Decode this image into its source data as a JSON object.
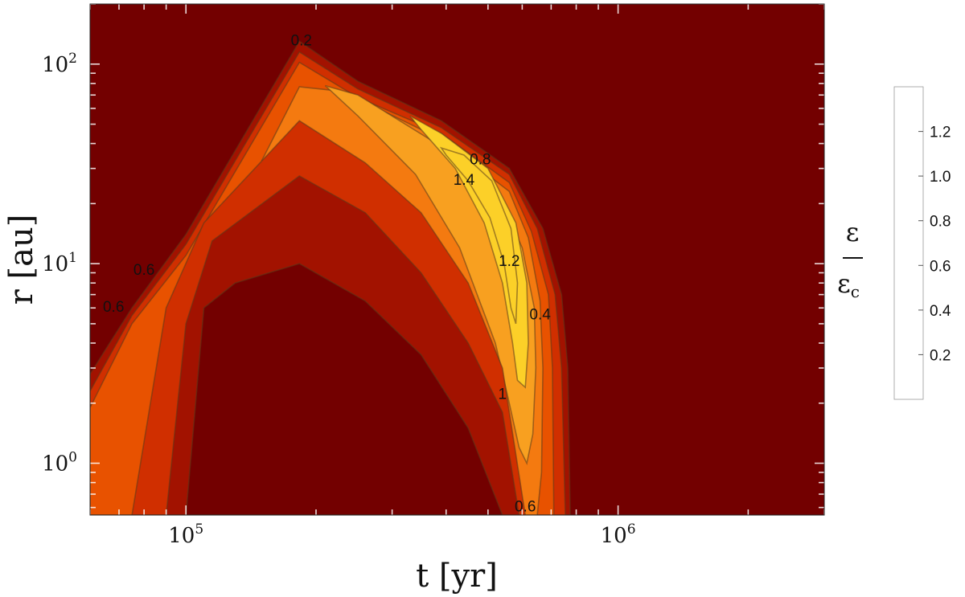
{
  "chart_data": {
    "type": "contour",
    "xlabel": "t [yr]",
    "ylabel": "r [au]",
    "xscale": "log",
    "yscale": "log",
    "xlim": [
      60000,
      3000000
    ],
    "ylim": [
      0.55,
      200
    ],
    "x_ticks": [
      {
        "value": 100000,
        "base": "10",
        "exp": "5"
      },
      {
        "value": 1000000,
        "base": "10",
        "exp": "6"
      }
    ],
    "y_ticks": [
      {
        "value": 1,
        "base": "10",
        "exp": "0"
      },
      {
        "value": 10,
        "base": "10",
        "exp": "1"
      },
      {
        "value": 100,
        "base": "10",
        "exp": "2"
      }
    ],
    "colorbar": {
      "title_num": "ε",
      "title_den": "ε",
      "title_den_sub": "c",
      "levels": [
        0.2,
        0.4,
        0.6,
        0.8,
        1.0,
        1.2
      ],
      "tick_labels": [
        "0.2",
        "0.4",
        "0.6",
        "0.8",
        "1.0",
        "1.2"
      ],
      "colors": [
        "#730000",
        "#a21200",
        "#d02f00",
        "#e85200",
        "#f47a10",
        "#f8a020",
        "#fcd028"
      ]
    },
    "contour_labels": [
      {
        "text": "0.2",
        "t": 185000,
        "r": 130
      },
      {
        "text": "0.8",
        "t": 480000,
        "r": 33
      },
      {
        "text": "1.4",
        "t": 440000,
        "r": 26
      },
      {
        "text": "1.2",
        "t": 560000,
        "r": 10.2
      },
      {
        "text": "0.4",
        "t": 660000,
        "r": 5.5
      },
      {
        "text": "1",
        "t": 540000,
        "r": 2.2
      },
      {
        "text": "0.6",
        "t": 610000,
        "r": 0.6
      },
      {
        "text": "0.6",
        "t": 80000,
        "r": 9.2
      },
      {
        "text": "0.6",
        "t": 68000,
        "r": 6.0
      }
    ],
    "contour_regions": [
      {
        "level": 0.2,
        "points": [
          [
            60000,
            0.55
          ],
          [
            60000,
            2.8
          ],
          [
            75000,
            6
          ],
          [
            100000,
            14
          ],
          [
            183000,
            130
          ],
          [
            250000,
            82
          ],
          [
            390000,
            52
          ],
          [
            560000,
            30
          ],
          [
            670000,
            15
          ],
          [
            740000,
            7
          ],
          [
            765000,
            3
          ],
          [
            775000,
            0.55
          ]
        ]
      },
      {
        "level": 0.4,
        "points": [
          [
            60000,
            0.55
          ],
          [
            60000,
            2.3
          ],
          [
            75000,
            5.5
          ],
          [
            100000,
            12.5
          ],
          [
            183000,
            115
          ],
          [
            250000,
            75
          ],
          [
            390000,
            48
          ],
          [
            560000,
            28
          ],
          [
            650000,
            15
          ],
          [
            715000,
            7
          ],
          [
            740000,
            3
          ],
          [
            755000,
            0.55
          ]
        ]
      },
      {
        "level": 0.6,
        "points": [
          [
            60000,
            0.55
          ],
          [
            60000,
            1.9
          ],
          [
            75000,
            5
          ],
          [
            100000,
            11
          ],
          [
            183000,
            102
          ],
          [
            250000,
            68
          ],
          [
            390000,
            45
          ],
          [
            560000,
            25.5
          ],
          [
            630000,
            14.5
          ],
          [
            690000,
            7
          ],
          [
            705000,
            3
          ],
          [
            710000,
            0.55
          ]
        ]
      },
      {
        "level": 0.8,
        "points": [
          [
            150000,
            33
          ],
          [
            183000,
            77
          ],
          [
            230000,
            73
          ],
          [
            390000,
            42
          ],
          [
            560000,
            23
          ],
          [
            620000,
            13.5
          ],
          [
            660000,
            6.5
          ],
          [
            670000,
            3
          ],
          [
            665000,
            0.9
          ],
          [
            650000,
            0.55
          ],
          [
            595000,
            0.55
          ],
          [
            570000,
            1
          ],
          [
            500000,
            2.2
          ],
          [
            420000,
            5
          ],
          [
            330000,
            12
          ],
          [
            255000,
            22
          ],
          [
            195000,
            30
          ],
          [
            150000,
            33
          ]
        ]
      },
      {
        "level": 1.0,
        "points": [
          [
            210000,
            78
          ],
          [
            250000,
            70
          ],
          [
            380000,
            40
          ],
          [
            530000,
            22
          ],
          [
            600000,
            12
          ],
          [
            640000,
            6
          ],
          [
            645000,
            3
          ],
          [
            635000,
            1.4
          ],
          [
            615000,
            1.0
          ],
          [
            590000,
            1.2
          ],
          [
            560000,
            2.0
          ],
          [
            520000,
            4
          ],
          [
            430000,
            12
          ],
          [
            340000,
            28
          ],
          [
            250000,
            55
          ],
          [
            210000,
            78
          ]
        ]
      },
      {
        "level": 1.2,
        "points": [
          [
            330000,
            55
          ],
          [
            390000,
            45
          ],
          [
            500000,
            30
          ],
          [
            580000,
            16
          ],
          [
            615000,
            8
          ],
          [
            620000,
            4
          ],
          [
            610000,
            2.4
          ],
          [
            585000,
            2.6
          ],
          [
            570000,
            4
          ],
          [
            540000,
            8
          ],
          [
            490000,
            16
          ],
          [
            420000,
            30
          ],
          [
            350000,
            47
          ],
          [
            330000,
            55
          ]
        ]
      },
      {
        "level": 1.4,
        "points": [
          [
            390000,
            38
          ],
          [
            440000,
            35
          ],
          [
            510000,
            26
          ],
          [
            565000,
            15
          ],
          [
            585000,
            8
          ],
          [
            580000,
            5
          ],
          [
            565000,
            6
          ],
          [
            545000,
            10
          ],
          [
            505000,
            17
          ],
          [
            450000,
            26
          ],
          [
            400000,
            35
          ],
          [
            390000,
            38
          ]
        ]
      }
    ],
    "interior_cavity": [
      [
        100000,
        0.55
      ],
      [
        110000,
        6
      ],
      [
        130000,
        8
      ],
      [
        183000,
        10
      ],
      [
        260000,
        6.5
      ],
      [
        350000,
        3.5
      ],
      [
        450000,
        1.5
      ],
      [
        540000,
        0.55
      ]
    ],
    "interior_band": [
      [
        90000,
        0.55
      ],
      [
        100000,
        5
      ],
      [
        115000,
        13
      ],
      [
        183000,
        27.5
      ],
      [
        260000,
        18
      ],
      [
        350000,
        9
      ],
      [
        450000,
        4
      ],
      [
        540000,
        1.8
      ],
      [
        590000,
        0.55
      ]
    ],
    "interior_band2": [
      [
        75000,
        0.55
      ],
      [
        90000,
        6
      ],
      [
        110000,
        16
      ],
      [
        183000,
        52
      ],
      [
        260000,
        32
      ],
      [
        350000,
        18
      ],
      [
        450000,
        8
      ],
      [
        540000,
        3
      ],
      [
        610000,
        0.55
      ]
    ]
  }
}
